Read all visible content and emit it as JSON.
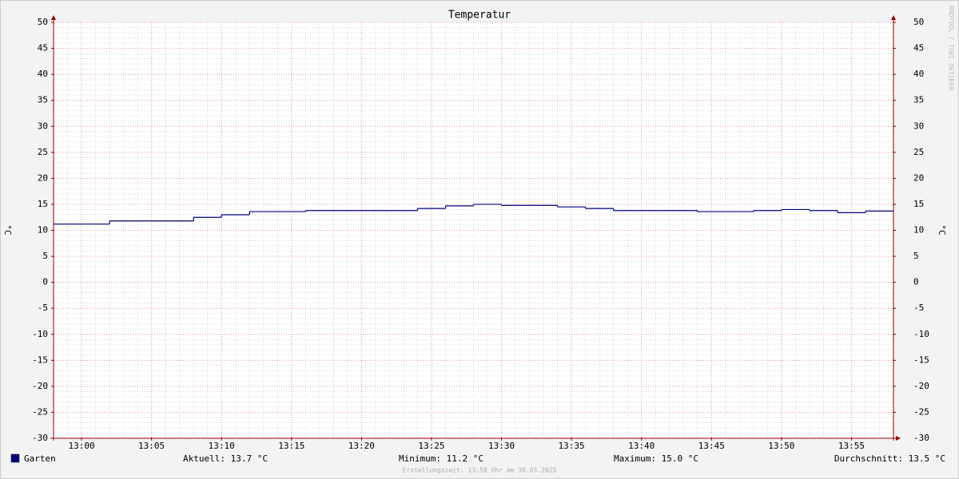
{
  "chart_data": {
    "type": "line",
    "step": true,
    "title": "Temperatur",
    "y_label": "°C",
    "watermark": "RRDTOOL / TOBI OETIKER",
    "x": [
      "12:58",
      "13:02",
      "13:08",
      "13:10",
      "13:12",
      "13:16",
      "13:24",
      "13:26",
      "13:28",
      "13:30",
      "13:34",
      "13:36",
      "13:38",
      "13:44",
      "13:48",
      "13:50",
      "13:52",
      "13:54",
      "13:56"
    ],
    "series": [
      {
        "name": "Garten",
        "color": "#00007f",
        "values": [
          11.2,
          11.8,
          12.5,
          13.0,
          13.6,
          13.8,
          14.2,
          14.7,
          15.0,
          14.8,
          14.5,
          14.2,
          13.8,
          13.6,
          13.8,
          14.0,
          13.8,
          13.4,
          13.7
        ]
      }
    ],
    "xlim": [
      "12:58",
      "13:58"
    ],
    "xticks": [
      "13:00",
      "13:05",
      "13:10",
      "13:15",
      "13:20",
      "13:25",
      "13:30",
      "13:35",
      "13:40",
      "13:45",
      "13:50",
      "13:55"
    ],
    "ylim": [
      -30,
      50
    ],
    "yticks": [
      -30,
      -25,
      -20,
      -15,
      -10,
      -5,
      0,
      5,
      10,
      15,
      20,
      25,
      30,
      35,
      40,
      45,
      50
    ],
    "grid": true,
    "stats": [
      "Aktuell: 13.7 °C",
      "Minimum: 11.2 °C",
      "Maximum: 15.0 °C",
      "Durchschnitt: 13.5 °C"
    ],
    "footer": "Erstellungszeit: 13:58 Uhr am 30.03.2025"
  }
}
